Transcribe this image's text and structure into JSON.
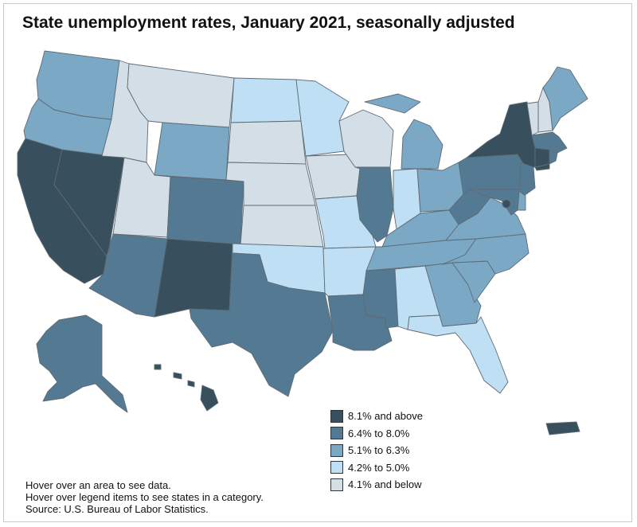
{
  "title": "State unemployment rates, January 2021, seasonally adjusted",
  "colors": {
    "c1": "#d3dee6",
    "c2": "#bfe0f4",
    "c3": "#7ba8c4",
    "c4": "#537a92",
    "c5": "#384f5e"
  },
  "legend": [
    {
      "label": "8.1% and above",
      "category": "c5"
    },
    {
      "label": "6.4% to 8.0%",
      "category": "c4"
    },
    {
      "label": "5.1% to 6.3%",
      "category": "c3"
    },
    {
      "label": "4.2% to 5.0%",
      "category": "c2"
    },
    {
      "label": "4.1% and below",
      "category": "c1"
    }
  ],
  "states": {
    "WA": "c3",
    "OR": "c3",
    "CA": "c5",
    "NV": "c5",
    "ID": "c1",
    "MT": "c1",
    "WY": "c3",
    "UT": "c1",
    "AZ": "c4",
    "CO": "c4",
    "NM": "c5",
    "ND": "c2",
    "SD": "c1",
    "NE": "c1",
    "KS": "c1",
    "OK": "c2",
    "TX": "c4",
    "MN": "c2",
    "IA": "c1",
    "MO": "c2",
    "AR": "c2",
    "LA": "c4",
    "WI": "c1",
    "IL": "c4",
    "MS": "c4",
    "MI": "c3",
    "IN": "c2",
    "KY": "c3",
    "TN": "c3",
    "AL": "c2",
    "OH": "c3",
    "GA": "c3",
    "FL": "c2",
    "SC": "c3",
    "NC": "c3",
    "VA": "c3",
    "WV": "c4",
    "PA": "c4",
    "NY": "c5",
    "VT": "c1",
    "NH": "c1",
    "ME": "c3",
    "MA": "c4",
    "CT": "c5",
    "RI": "c4",
    "NJ": "c4",
    "DE": "c3",
    "MD": "c4",
    "DC": "c5",
    "AK": "c4",
    "HI": "c5",
    "PR": "c5"
  },
  "notes": [
    "Hover over an area to see data.",
    "Hover over legend items to see states in a category.",
    "Source: U.S. Bureau of Labor Statistics."
  ]
}
